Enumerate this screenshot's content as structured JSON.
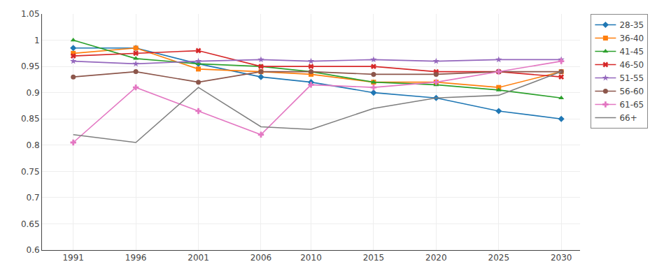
{
  "chart_data": {
    "type": "line",
    "x": [
      1991,
      1996,
      2001,
      2006,
      2010,
      2015,
      2020,
      2025,
      2030
    ],
    "series": [
      {
        "name": "28-35",
        "marker": "diamond",
        "values": [
          0.985,
          0.985,
          0.955,
          0.93,
          0.92,
          0.9,
          0.89,
          0.865,
          0.85
        ]
      },
      {
        "name": "36-40",
        "marker": "square",
        "values": [
          0.975,
          0.985,
          0.945,
          0.94,
          0.935,
          0.92,
          0.92,
          0.91,
          0.94
        ]
      },
      {
        "name": "41-45",
        "marker": "triangle-up",
        "values": [
          1.0,
          0.965,
          0.955,
          0.95,
          0.94,
          0.92,
          0.915,
          0.905,
          0.89
        ]
      },
      {
        "name": "46-50",
        "marker": "x",
        "values": [
          0.97,
          0.975,
          0.98,
          0.95,
          0.95,
          0.95,
          0.94,
          0.94,
          0.93
        ]
      },
      {
        "name": "51-55",
        "marker": "star",
        "values": [
          0.96,
          0.955,
          0.96,
          0.963,
          0.96,
          0.963,
          0.96,
          0.963,
          0.963
        ]
      },
      {
        "name": "56-60",
        "marker": "circle",
        "values": [
          0.93,
          0.94,
          0.92,
          0.94,
          0.94,
          0.935,
          0.935,
          0.94,
          0.94
        ]
      },
      {
        "name": "61-65",
        "marker": "plus",
        "values": [
          0.805,
          0.91,
          0.865,
          0.82,
          0.915,
          0.91,
          0.92,
          0.94,
          0.96
        ]
      },
      {
        "name": "66+",
        "marker": "none",
        "values": [
          0.82,
          0.805,
          0.91,
          0.835,
          0.83,
          0.87,
          0.89,
          0.895,
          0.94
        ]
      }
    ],
    "xlim": [
      1988.5,
      2031.5
    ],
    "ylim": [
      0.6,
      1.05
    ],
    "xticks": [
      1991,
      1996,
      2001,
      2006,
      2010,
      2015,
      2020,
      2025,
      2030
    ],
    "yticks": [
      0.6,
      0.65,
      0.7,
      0.75,
      0.8,
      0.85,
      0.9,
      0.95,
      1,
      1.05
    ],
    "grid": true,
    "legend": "upper right"
  }
}
